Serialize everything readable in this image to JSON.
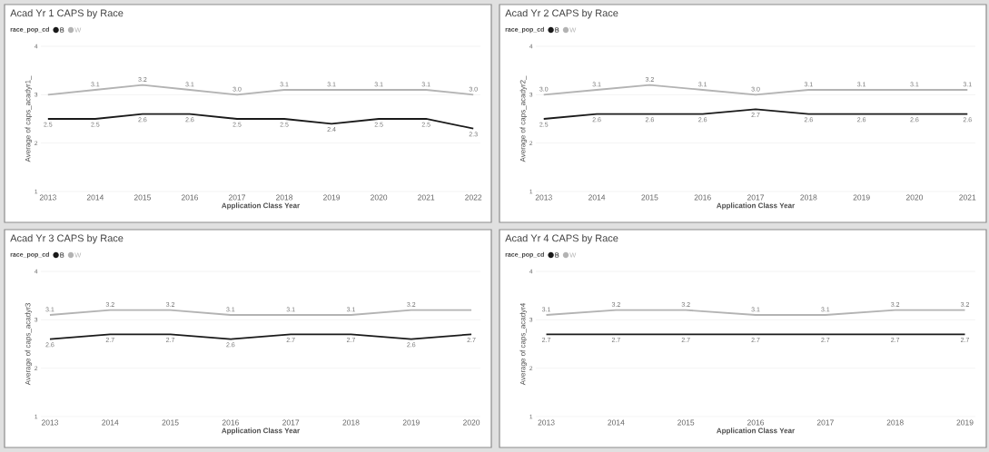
{
  "chart_data": [
    {
      "type": "line",
      "title": "Acad Yr 1 CAPS by Race",
      "xlabel": "Application Class Year",
      "ylabel": "Average of caps_acadyr1_",
      "legend_title": "race_pop_cd",
      "legend": "top left",
      "grid": "y",
      "ylim": [
        1,
        4
      ],
      "yticks": [
        1,
        2,
        3,
        4
      ],
      "categories": [
        "2013",
        "2014",
        "2015",
        "2016",
        "2017",
        "2018",
        "2019",
        "2020",
        "2021",
        "2022"
      ],
      "series": [
        {
          "name": "B",
          "color": "#1a1a1a",
          "values": [
            2.5,
            2.5,
            2.6,
            2.6,
            2.5,
            2.5,
            2.4,
            2.5,
            2.5,
            2.3
          ],
          "value_labels": [
            "2.5",
            "2.5",
            "2.6",
            "2.6",
            "2.5",
            "2.5",
            "2.4",
            "2.5",
            "2.5",
            "2.3"
          ]
        },
        {
          "name": "W",
          "color": "#b3b3b3",
          "values": [
            3.0,
            3.1,
            3.2,
            3.1,
            3.0,
            3.1,
            3.1,
            3.1,
            3.1,
            3.0
          ],
          "value_labels": [
            null,
            "3.1",
            "3.2",
            "3.1",
            "3.0",
            "3.1",
            "3.1",
            "3.1",
            "3.1",
            "3.0"
          ]
        }
      ]
    },
    {
      "type": "line",
      "title": "Acad Yr 2 CAPS by Race",
      "xlabel": "Application Class Year",
      "ylabel": "Average of caps_acadyr2_",
      "legend_title": "race_pop_cd",
      "legend": "top left",
      "grid": "y",
      "ylim": [
        1,
        4
      ],
      "yticks": [
        1,
        2,
        3,
        4
      ],
      "categories": [
        "2013",
        "2014",
        "2015",
        "2016",
        "2017",
        "2018",
        "2019",
        "2020",
        "2021"
      ],
      "series": [
        {
          "name": "B",
          "color": "#1a1a1a",
          "values": [
            2.5,
            2.6,
            2.6,
            2.6,
            2.7,
            2.6,
            2.6,
            2.6,
            2.6
          ],
          "value_labels": [
            "2.5",
            "2.6",
            "2.6",
            "2.6",
            "2.7",
            "2.6",
            "2.6",
            "2.6",
            "2.6"
          ]
        },
        {
          "name": "W",
          "color": "#b3b3b3",
          "values": [
            3.0,
            3.1,
            3.2,
            3.1,
            3.0,
            3.1,
            3.1,
            3.1,
            3.1
          ],
          "value_labels": [
            "3.0",
            "3.1",
            "3.2",
            "3.1",
            "3.0",
            "3.1",
            "3.1",
            "3.1",
            "3.1"
          ]
        }
      ]
    },
    {
      "type": "line",
      "title": "Acad Yr 3 CAPS by Race",
      "xlabel": "Application Class Year",
      "ylabel": "Average of caps_acadyr3",
      "legend_title": "race_pop_cd",
      "legend": "top left",
      "grid": "y",
      "ylim": [
        1,
        4
      ],
      "yticks": [
        1,
        2,
        3,
        4
      ],
      "categories": [
        "2013",
        "2014",
        "2015",
        "2016",
        "2017",
        "2018",
        "2019",
        "2020"
      ],
      "series": [
        {
          "name": "B",
          "color": "#1a1a1a",
          "values": [
            2.6,
            2.7,
            2.7,
            2.6,
            2.7,
            2.7,
            2.6,
            2.7
          ],
          "value_labels": [
            "2.6",
            "2.7",
            "2.7",
            "2.6",
            "2.7",
            "2.7",
            "2.6",
            "2.7"
          ]
        },
        {
          "name": "W",
          "color": "#b3b3b3",
          "values": [
            3.1,
            3.2,
            3.2,
            3.1,
            3.1,
            3.1,
            3.2,
            3.2
          ],
          "value_labels": [
            "3.1",
            "3.2",
            "3.2",
            "3.1",
            "3.1",
            "3.1",
            "3.2",
            null
          ]
        }
      ]
    },
    {
      "type": "line",
      "title": "Acad Yr 4 CAPS by Race",
      "xlabel": "Application Class Year",
      "ylabel": "Average of caps_acadyr4",
      "legend_title": "race_pop_cd",
      "legend": "top left",
      "grid": "y",
      "ylim": [
        1,
        4
      ],
      "yticks": [
        1,
        2,
        3,
        4
      ],
      "categories": [
        "2013",
        "2014",
        "2015",
        "2016",
        "2017",
        "2018",
        "2019"
      ],
      "series": [
        {
          "name": "B",
          "color": "#1a1a1a",
          "values": [
            2.7,
            2.7,
            2.7,
            2.7,
            2.7,
            2.7,
            2.7
          ],
          "value_labels": [
            "2.7",
            "2.7",
            "2.7",
            "2.7",
            "2.7",
            "2.7",
            "2.7"
          ]
        },
        {
          "name": "W",
          "color": "#b3b3b3",
          "values": [
            3.1,
            3.2,
            3.2,
            3.1,
            3.1,
            3.2,
            3.2
          ],
          "value_labels": [
            "3.1",
            "3.2",
            "3.2",
            "3.1",
            "3.1",
            "3.2",
            "3.2"
          ]
        }
      ]
    }
  ]
}
